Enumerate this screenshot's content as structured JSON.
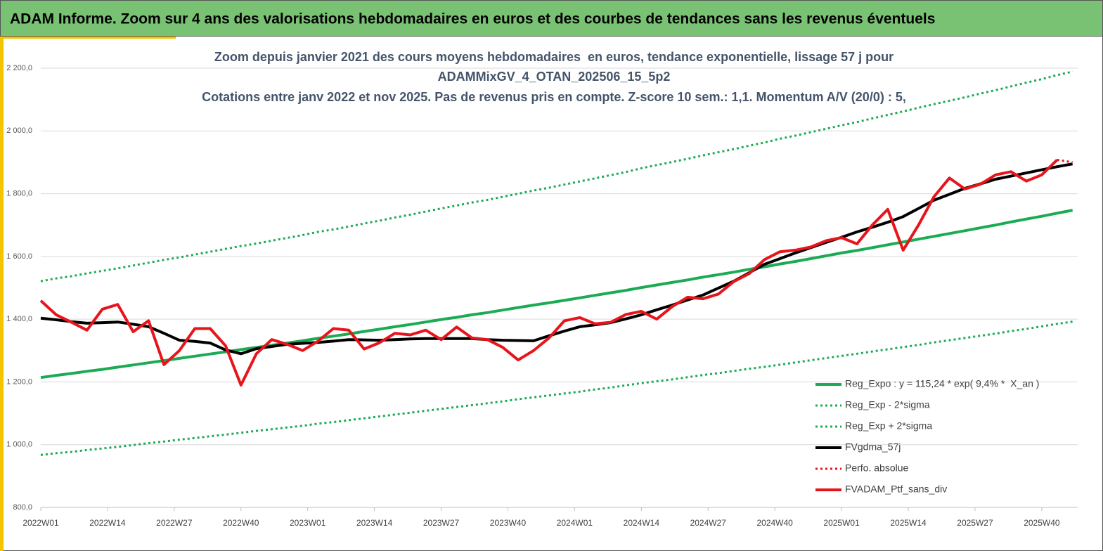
{
  "chart_data": {
    "type": "line",
    "title": "ADAM Informe. Zoom sur 4 ans des valorisations hebdomadaires en euros et des courbes de tendances sans les revenus éventuels",
    "subtitle": [
      "Zoom depuis janvier 2021 des cours moyens hebdomadaires  en euros, tendance exponentielle, lissage 57 j pour",
      "ADAMMixGV_4_OTAN_202506_15_5p2",
      "Cotations entre janv 2022 et nov 2025. Pas de revenus pris en compte. Z-score 10 sem.: 1,1. Momentum A/V (20/0) : 5,"
    ],
    "x": [
      0,
      3,
      6,
      9,
      12,
      15,
      18,
      21,
      24,
      27,
      30,
      33,
      36,
      39,
      42,
      45,
      48,
      51,
      54,
      57,
      60,
      63,
      66,
      69,
      72,
      75,
      78,
      81,
      84,
      87,
      90,
      93,
      96,
      99,
      102,
      105,
      108,
      111,
      114,
      117,
      120,
      123,
      126,
      129,
      132,
      135,
      138,
      141,
      144,
      147,
      150,
      153,
      156,
      159,
      162,
      165,
      168,
      171,
      174,
      177,
      180,
      183,
      186,
      189,
      192,
      195,
      198,
      201
    ],
    "xlim": [
      0,
      202
    ],
    "xticks": [
      {
        "value": 0,
        "label": "2022W01"
      },
      {
        "value": 13,
        "label": "2022W14"
      },
      {
        "value": 26,
        "label": "2022W27"
      },
      {
        "value": 39,
        "label": "2022W40"
      },
      {
        "value": 52,
        "label": "2023W01"
      },
      {
        "value": 65,
        "label": "2023W14"
      },
      {
        "value": 78,
        "label": "2023W27"
      },
      {
        "value": 91,
        "label": "2023W40"
      },
      {
        "value": 104,
        "label": "2024W01"
      },
      {
        "value": 117,
        "label": "2024W14"
      },
      {
        "value": 130,
        "label": "2024W27"
      },
      {
        "value": 143,
        "label": "2024W40"
      },
      {
        "value": 156,
        "label": "2025W01"
      },
      {
        "value": 169,
        "label": "2025W14"
      },
      {
        "value": 182,
        "label": "2025W27"
      },
      {
        "value": 195,
        "label": "2025W40"
      }
    ],
    "ylim": [
      800,
      2200
    ],
    "yticks": [
      {
        "value": 800,
        "label": "800,0"
      },
      {
        "value": 1000,
        "label": "1 000,0"
      },
      {
        "value": 1200,
        "label": "1 200,0"
      },
      {
        "value": 1400,
        "label": "1 400,0"
      },
      {
        "value": 1600,
        "label": "1 600,0"
      },
      {
        "value": 1800,
        "label": "1 800,0"
      },
      {
        "value": 2000,
        "label": "2 000,0"
      },
      {
        "value": 2200,
        "label": "2 200,0"
      }
    ],
    "grid": true,
    "legend": "lower-right",
    "series": [
      {
        "name": "Reg_Expo : y = 115,24 * exp( 9,4% *  X_an )",
        "color": "#1bab53",
        "style": "solid",
        "values": [
          1214,
          1221,
          1227,
          1234,
          1240,
          1247,
          1254,
          1261,
          1268,
          1275,
          1282,
          1289,
          1296,
          1303,
          1310,
          1317,
          1324,
          1331,
          1339,
          1346,
          1353,
          1361,
          1368,
          1376,
          1383,
          1391,
          1399,
          1406,
          1414,
          1421,
          1429,
          1437,
          1445,
          1452,
          1460,
          1468,
          1476,
          1484,
          1492,
          1501,
          1509,
          1517,
          1525,
          1534,
          1542,
          1550,
          1559,
          1567,
          1576,
          1584,
          1593,
          1602,
          1611,
          1619,
          1628,
          1637,
          1646,
          1655,
          1664,
          1673,
          1682,
          1691,
          1700,
          1710,
          1719,
          1728,
          1738,
          1747
        ]
      },
      {
        "name": "Reg_Exp - 2*sigma",
        "color": "#1bab53",
        "style": "dotted",
        "values": [
          967,
          973,
          977,
          983,
          988,
          993,
          999,
          1005,
          1010,
          1016,
          1021,
          1027,
          1032,
          1038,
          1044,
          1049,
          1055,
          1060,
          1067,
          1072,
          1078,
          1084,
          1090,
          1096,
          1102,
          1108,
          1114,
          1120,
          1126,
          1132,
          1138,
          1145,
          1151,
          1157,
          1163,
          1169,
          1176,
          1182,
          1189,
          1196,
          1202,
          1208,
          1215,
          1222,
          1228,
          1235,
          1242,
          1248,
          1255,
          1262,
          1269,
          1276,
          1283,
          1290,
          1297,
          1304,
          1311,
          1318,
          1326,
          1333,
          1340,
          1347,
          1354,
          1362,
          1369,
          1377,
          1385,
          1392
        ]
      },
      {
        "name": "Reg_Exp + 2*sigma",
        "color": "#1bab53",
        "style": "dotted",
        "values": [
          1521,
          1530,
          1537,
          1546,
          1554,
          1562,
          1571,
          1580,
          1589,
          1597,
          1606,
          1615,
          1624,
          1633,
          1641,
          1650,
          1659,
          1668,
          1678,
          1686,
          1695,
          1705,
          1714,
          1724,
          1733,
          1743,
          1753,
          1762,
          1772,
          1780,
          1790,
          1800,
          1810,
          1819,
          1829,
          1839,
          1849,
          1859,
          1869,
          1881,
          1891,
          1901,
          1911,
          1922,
          1932,
          1942,
          1953,
          1963,
          1975,
          1985,
          1996,
          2007,
          2018,
          2028,
          2040,
          2051,
          2062,
          2074,
          2085,
          2096,
          2107,
          2119,
          2130,
          2142,
          2154,
          2165,
          2178,
          2189
        ]
      },
      {
        "name": "FVgdma_57j",
        "color": "#000000",
        "style": "solid",
        "values": [
          1403,
          1398,
          1392,
          1387,
          1389,
          1391,
          1384,
          1376,
          1355,
          1333,
          1329,
          1324,
          1302,
          1290,
          1306,
          1313,
          1320,
          1323,
          1326,
          1330,
          1335,
          1334,
          1333,
          1335,
          1337,
          1338,
          1338,
          1338,
          1338,
          1335,
          1333,
          1332,
          1331,
          1347,
          1362,
          1376,
          1382,
          1389,
          1401,
          1414,
          1430,
          1445,
          1461,
          1477,
          1499,
          1521,
          1548,
          1575,
          1593,
          1611,
          1628,
          1645,
          1661,
          1678,
          1693,
          1709,
          1727,
          1753,
          1779,
          1798,
          1817,
          1831,
          1846,
          1856,
          1866,
          1876,
          1886,
          1895
        ]
      },
      {
        "name": "Perfo. absolue",
        "color": "#e8141b",
        "style": "dotted",
        "values": [
          null,
          null,
          null,
          null,
          null,
          null,
          null,
          null,
          null,
          null,
          null,
          null,
          null,
          null,
          null,
          null,
          null,
          null,
          null,
          null,
          null,
          null,
          null,
          null,
          null,
          null,
          null,
          null,
          null,
          null,
          null,
          null,
          null,
          null,
          null,
          null,
          null,
          null,
          null,
          null,
          null,
          null,
          null,
          null,
          null,
          null,
          null,
          null,
          null,
          null,
          null,
          null,
          null,
          null,
          null,
          null,
          null,
          null,
          null,
          null,
          null,
          null,
          null,
          null,
          null,
          null,
          1908,
          1900
        ]
      },
      {
        "name": "FVADAM_Ptf_sans_div",
        "color": "#e8141b",
        "style": "solid",
        "values": [
          1459,
          1414,
          1390,
          1365,
          1432,
          1447,
          1360,
          1395,
          1255,
          1300,
          1370,
          1370,
          1315,
          1190,
          1290,
          1335,
          1320,
          1300,
          1330,
          1370,
          1365,
          1305,
          1325,
          1355,
          1350,
          1365,
          1335,
          1375,
          1340,
          1335,
          1310,
          1270,
          1300,
          1340,
          1395,
          1405,
          1385,
          1390,
          1415,
          1425,
          1400,
          1440,
          1470,
          1465,
          1480,
          1520,
          1545,
          1590,
          1615,
          1620,
          1630,
          1650,
          1660,
          1640,
          1700,
          1750,
          1620,
          1700,
          1790,
          1850,
          1815,
          1830,
          1860,
          1870,
          1840,
          1860,
          1908,
          null
        ]
      }
    ]
  }
}
